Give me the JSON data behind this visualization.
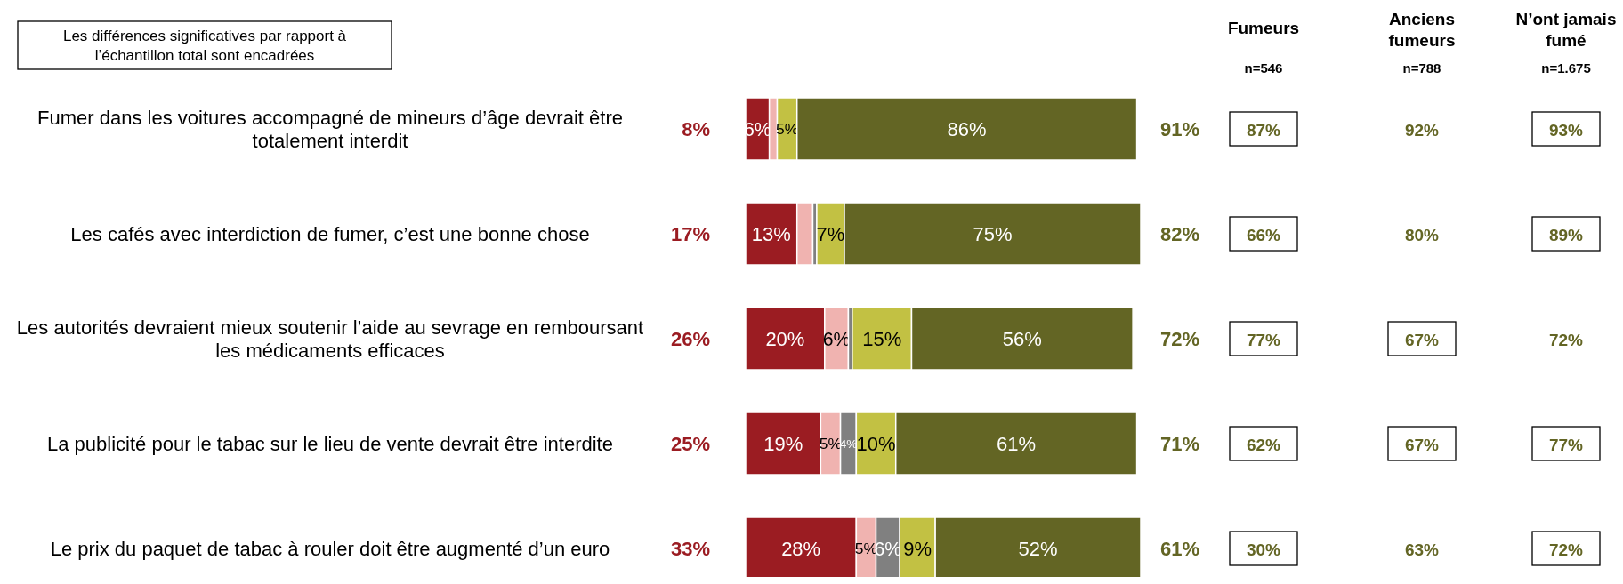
{
  "chart_data": [
    {
      "type": "bar",
      "orientation": "horizontal",
      "stacked": true,
      "xlim": [
        0,
        100
      ],
      "categories": [
        "Fumer dans les voitures accompagné de mineurs d’âge devrait être totalement interdit",
        "Les cafés avec interdiction de fumer, c’est une bonne chose",
        "Les autorités devraient mieux soutenir l’aide au sevrage en remboursant les médicaments efficaces",
        "La publicité pour le tabac sur le lieu de vente devrait être interdite",
        "Le prix du paquet de tabac à rouler doit être augmenté d’un euro"
      ],
      "series": [
        {
          "color": "#9b1c22",
          "values": [
            6,
            13,
            20,
            19,
            28
          ],
          "value_labels": [
            "6%",
            "13%",
            "20%",
            "19%",
            "28%"
          ]
        },
        {
          "color": "#f0b3b0",
          "values": [
            2,
            4,
            6,
            5,
            5
          ],
          "value_labels": [
            null,
            null,
            "6%",
            "5%",
            "5%"
          ]
        },
        {
          "color": "#808080",
          "values": [
            null,
            1,
            1,
            4,
            6
          ],
          "value_labels": [
            null,
            null,
            null,
            "4%",
            "6%"
          ]
        },
        {
          "color": "#c2c143",
          "values": [
            5,
            7,
            15,
            10,
            9
          ],
          "value_labels": [
            "5%",
            "7%",
            "15%",
            "10%",
            "9%"
          ]
        },
        {
          "color": "#636524",
          "values": [
            86,
            75,
            56,
            61,
            52
          ],
          "value_labels": [
            "86%",
            "75%",
            "56%",
            "61%",
            "52%"
          ]
        }
      ],
      "annotations": [
        "Les différences significatives par rapport à l’échantillon total sont encadrées"
      ]
    },
    {
      "type": "other",
      "color": "#9b1c22",
      "cell_labels": [
        [
          "8%"
        ],
        [
          "17%"
        ],
        [
          "26%"
        ],
        [
          "25%"
        ],
        [
          "33%"
        ]
      ]
    },
    {
      "type": "other",
      "color": "#636524",
      "cell_labels": [
        [
          "91%"
        ],
        [
          "82%"
        ],
        [
          "72%"
        ],
        [
          "71%"
        ],
        [
          "61%"
        ]
      ]
    },
    {
      "type": "other",
      "categories": [
        "Fumeurs\nn=546",
        "Anciens\nfumeurs\nn=788",
        "N’ont jamais\nfumé\nn=1.675"
      ],
      "color": "#636524",
      "cell_labels": [
        [
          "87%",
          "92%",
          "93%"
        ],
        [
          "66%",
          "80%",
          "89%"
        ],
        [
          "77%",
          "67%",
          "72%"
        ],
        [
          "62%",
          "67%",
          "77%"
        ],
        [
          "30%",
          "63%",
          "72%"
        ]
      ],
      "cells": [
        [
          true,
          false,
          true
        ],
        [
          true,
          false,
          true
        ],
        [
          true,
          true,
          false
        ],
        [
          true,
          true,
          true
        ],
        [
          true,
          false,
          true
        ]
      ]
    }
  ]
}
